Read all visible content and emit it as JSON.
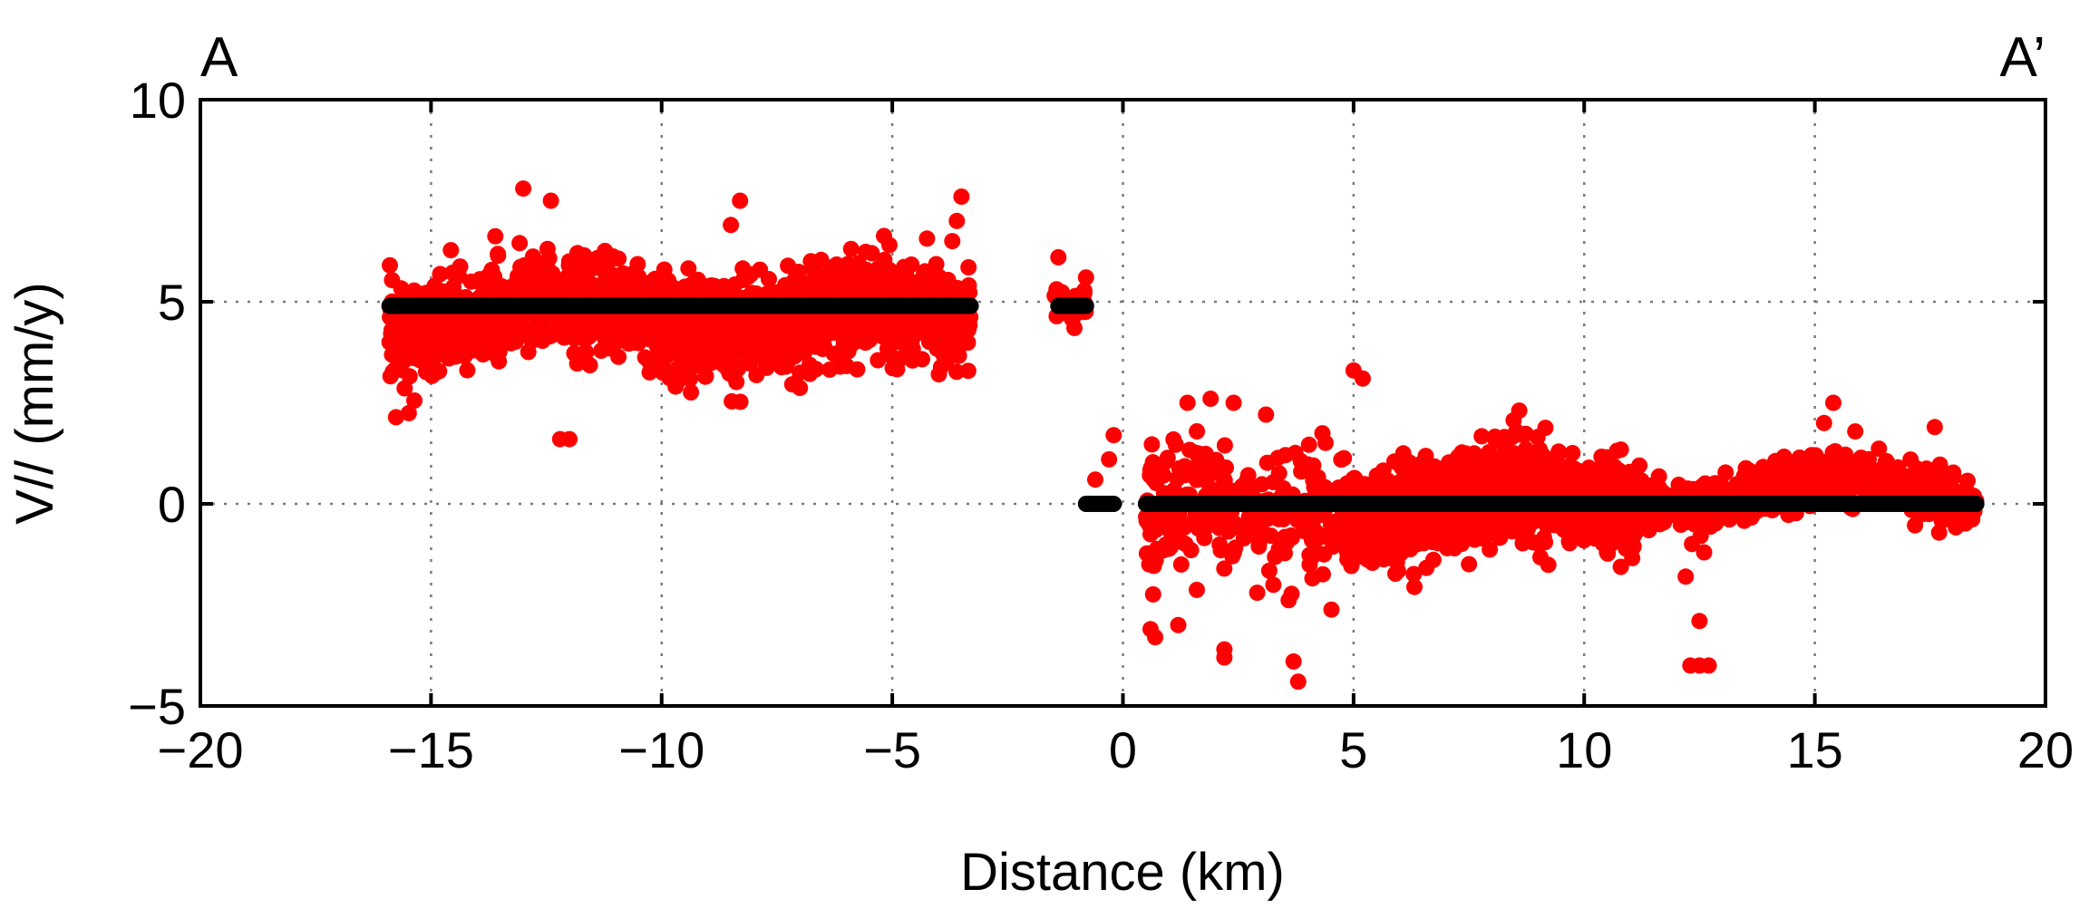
{
  "chart_data": {
    "type": "scatter",
    "title": "",
    "xlabel": "Distance (km)",
    "ylabel": "V// (mm/y)",
    "xlim": [
      -20,
      20
    ],
    "ylim": [
      -5,
      10
    ],
    "xticks": [
      -20,
      -15,
      -10,
      -5,
      0,
      5,
      10,
      15,
      20
    ],
    "yticks": [
      -5,
      0,
      5,
      10
    ],
    "xtick_labels": [
      "−20",
      "−15",
      "−10",
      "−5",
      "0",
      "5",
      "10",
      "15",
      "20"
    ],
    "ytick_labels": [
      "−5",
      "0",
      "5",
      "10"
    ],
    "grid": true,
    "legend": "none",
    "corner_labels": {
      "left": "A",
      "right": "A’"
    },
    "colors": {
      "observed": "#ff0000",
      "model": "#000000"
    },
    "series": [
      {
        "color": "#ff0000",
        "clouds": [
          {
            "x_range": [
              -15.9,
              -3.3
            ],
            "center": 4.6,
            "spread": 1.1,
            "count": 1500
          },
          {
            "x_range": [
              -1.5,
              -0.8
            ],
            "center": 5.2,
            "spread": 0.35,
            "count": 40
          },
          {
            "x_range": [
              0.5,
              4.8
            ],
            "center": -0.3,
            "spread": 1.6,
            "count": 260
          },
          {
            "x_range": [
              4.8,
              11.2
            ],
            "center": 0.0,
            "spread": 1.0,
            "count": 1300
          },
          {
            "x_range": [
              11.2,
              18.5
            ],
            "center": 0.3,
            "spread": 0.55,
            "count": 700
          }
        ],
        "outliers": [
          {
            "x": -12.2,
            "y": 1.6
          },
          {
            "x": -12.0,
            "y": 1.6
          },
          {
            "x": -13.0,
            "y": 7.8
          },
          {
            "x": -12.4,
            "y": 7.5
          },
          {
            "x": -8.3,
            "y": 7.5
          },
          {
            "x": -8.5,
            "y": 6.9
          },
          {
            "x": -3.5,
            "y": 7.6
          },
          {
            "x": -3.7,
            "y": 6.5
          },
          {
            "x": -3.6,
            "y": 7.0
          },
          {
            "x": -15.9,
            "y": 4.0
          },
          {
            "x": -1.4,
            "y": 6.1
          },
          {
            "x": -0.8,
            "y": 5.6
          },
          {
            "x": -0.2,
            "y": 1.7
          },
          {
            "x": -0.3,
            "y": 1.1
          },
          {
            "x": -0.6,
            "y": 0.6
          },
          {
            "x": 0.6,
            "y": -3.1
          },
          {
            "x": 0.7,
            "y": -3.3
          },
          {
            "x": 1.2,
            "y": -3.0
          },
          {
            "x": 2.2,
            "y": -3.6
          },
          {
            "x": 2.2,
            "y": -3.8
          },
          {
            "x": 3.7,
            "y": -3.9
          },
          {
            "x": 3.8,
            "y": -4.4
          },
          {
            "x": 1.4,
            "y": 2.5
          },
          {
            "x": 1.9,
            "y": 2.6
          },
          {
            "x": 2.4,
            "y": 2.5
          },
          {
            "x": 5.0,
            "y": 3.3
          },
          {
            "x": 5.2,
            "y": 3.1
          },
          {
            "x": 12.2,
            "y": -1.8
          },
          {
            "x": 12.5,
            "y": -2.9
          },
          {
            "x": 12.3,
            "y": -4.0
          },
          {
            "x": 12.5,
            "y": -4.0
          },
          {
            "x": 12.7,
            "y": -4.0
          },
          {
            "x": 12.6,
            "y": -1.2
          },
          {
            "x": 15.4,
            "y": 2.5
          },
          {
            "x": 15.2,
            "y": 2.0
          },
          {
            "x": 17.6,
            "y": 1.9
          }
        ]
      },
      {
        "color": "#000000",
        "segments": [
          {
            "x_range": [
              -15.9,
              -3.3
            ],
            "y": 4.9
          },
          {
            "x_range": [
              -1.4,
              -0.8
            ],
            "y": 4.9
          },
          {
            "x_range": [
              -0.8,
              -0.2
            ],
            "y": 0.0
          },
          {
            "x_range": [
              0.5,
              18.5
            ],
            "y": 0.0
          }
        ]
      }
    ]
  }
}
